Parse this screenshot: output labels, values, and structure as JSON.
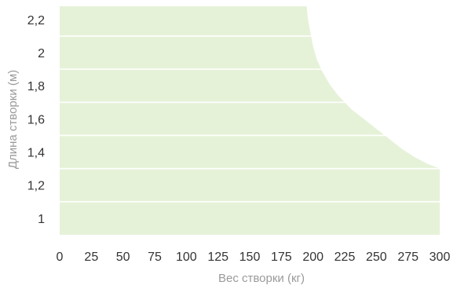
{
  "colors": {
    "area_fill": "#e6f2d8",
    "gridline": "#ffffff",
    "tick_text": "#333333",
    "axis_title": "#9a9a9a",
    "background": "#ffffff"
  },
  "chart_data": {
    "type": "area",
    "title": "",
    "xlabel": "Вес створки (кг)",
    "ylabel": "Длина створки (м)",
    "xlim": [
      0,
      300
    ],
    "ylim": [
      0.9,
      2.28
    ],
    "x_ticks": [
      0,
      25,
      50,
      75,
      100,
      125,
      150,
      175,
      200,
      225,
      250,
      275,
      300
    ],
    "x_tick_labels": [
      "0",
      "25",
      "50",
      "75",
      "100",
      "125",
      "150",
      "175",
      "200",
      "225",
      "250",
      "275",
      "300"
    ],
    "y_ticks": [
      1,
      1.2,
      1.4,
      1.6,
      1.8,
      2,
      2.2
    ],
    "y_tick_labels": [
      "1",
      "1,2",
      "1,4",
      "1,6",
      "1,8",
      "2",
      "2,2"
    ],
    "grid": true,
    "legend": "none",
    "series": [
      {
        "x": [
          0,
          195,
          196,
          198,
          200,
          203,
          207,
          213,
          220,
          230,
          240,
          250,
          260,
          270,
          280,
          290,
          300
        ],
        "y": [
          2.28,
          2.28,
          2.2,
          2.12,
          2.04,
          1.96,
          1.89,
          1.81,
          1.74,
          1.66,
          1.6,
          1.54,
          1.48,
          1.42,
          1.37,
          1.33,
          1.3
        ]
      }
    ]
  }
}
